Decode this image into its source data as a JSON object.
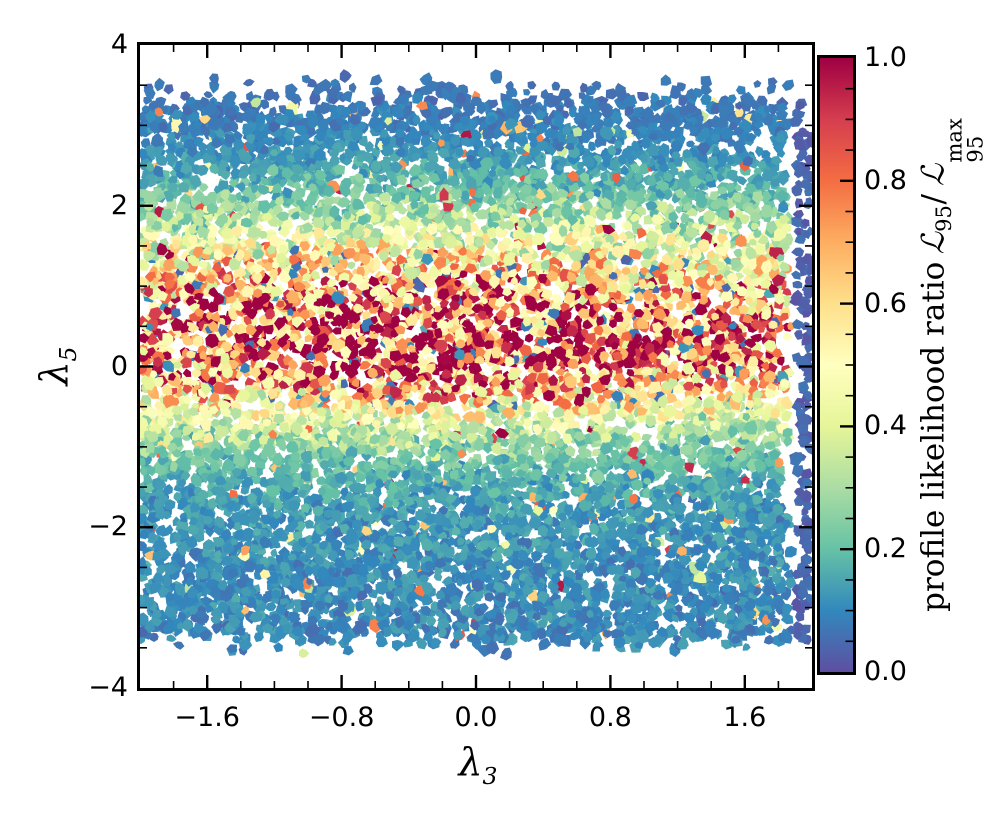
{
  "figure": {
    "background": "#ffffff",
    "frame_color": "#000000"
  },
  "chart_data": {
    "type": "scatter",
    "description": "Dense scatter of model points in the (lambda3, lambda5) plane, each point colored by its profile likelihood ratio using the Spectral_r colormap. A high-likelihood (red) horizontal ridge lies near lambda5 ~ 0.3; likelihood falls off to dark blue toward large |lambda5|.",
    "xlabel": {
      "symbol": "λ",
      "subscript": "3"
    },
    "ylabel": {
      "symbol": "λ",
      "subscript": "5"
    },
    "xlim": [
      -2.0,
      2.0
    ],
    "ylim": [
      -4.0,
      4.0
    ],
    "xticks": {
      "major": [
        -1.6,
        -0.8,
        0.0,
        0.8,
        1.6
      ],
      "labels": [
        "−1.6",
        "−0.8",
        "0.0",
        "0.8",
        "1.6"
      ],
      "minor_step": 0.2
    },
    "yticks": {
      "major": [
        4,
        2,
        0,
        -2,
        -4
      ],
      "labels": [
        "4",
        "2",
        "0",
        "−2",
        "−4"
      ],
      "minor_step": 0.5
    },
    "colorbar": {
      "label_prefix": "profile likelihood ratio",
      "script_L": "ℒ",
      "subscript": "95",
      "slash": "/",
      "superscript": "max",
      "ticks": [
        1.0,
        0.8,
        0.6,
        0.4,
        0.2,
        0.0
      ],
      "tick_labels": [
        "1.0",
        "0.8",
        "0.6",
        "0.4",
        "0.2",
        "0.0"
      ],
      "minor_step": 0.05,
      "range": [
        0.0,
        1.0
      ],
      "colormap": "Spectral_r",
      "stops": [
        "#5e4fa2",
        "#3288bd",
        "#66c2a5",
        "#abdda4",
        "#e6f598",
        "#ffffbf",
        "#fee08b",
        "#fdae61",
        "#f46d43",
        "#d53e4f",
        "#9e0142"
      ]
    },
    "point_cloud_model": {
      "seed": 1337,
      "attempts": 11000,
      "x_range": [
        -2.0,
        1.88
      ],
      "y_range": [
        -3.62,
        3.62
      ],
      "top_taper_start": 3.15,
      "bottom_taper_start": 3.3,
      "right_gap_start": 1.8,
      "ridge_center": 0.28,
      "ridge_sigma_up": 1.0,
      "ridge_sigma_down": 0.68,
      "ridge_amp_base": 0.78,
      "ridge_amp_peak": 0.22,
      "ridge_amp_x0": -0.45,
      "ridge_amp_xsigma": 1.05,
      "broad_amp": 0.075,
      "broad_center": 0.2,
      "broad_sigma": 2.1,
      "floor_base": 0.062,
      "floor_tilt": 0.022,
      "speckle_prob": 0.03,
      "rare_red_prob": 0.005,
      "blue_outlier_prob": 0.05,
      "boundary_column": {
        "n": 170,
        "x_range": [
          1.905,
          1.995
        ],
        "y_range": [
          -3.42,
          3.38
        ],
        "v_max": 0.07
      },
      "blob_radius_px": [
        4.2,
        6.6
      ]
    }
  }
}
